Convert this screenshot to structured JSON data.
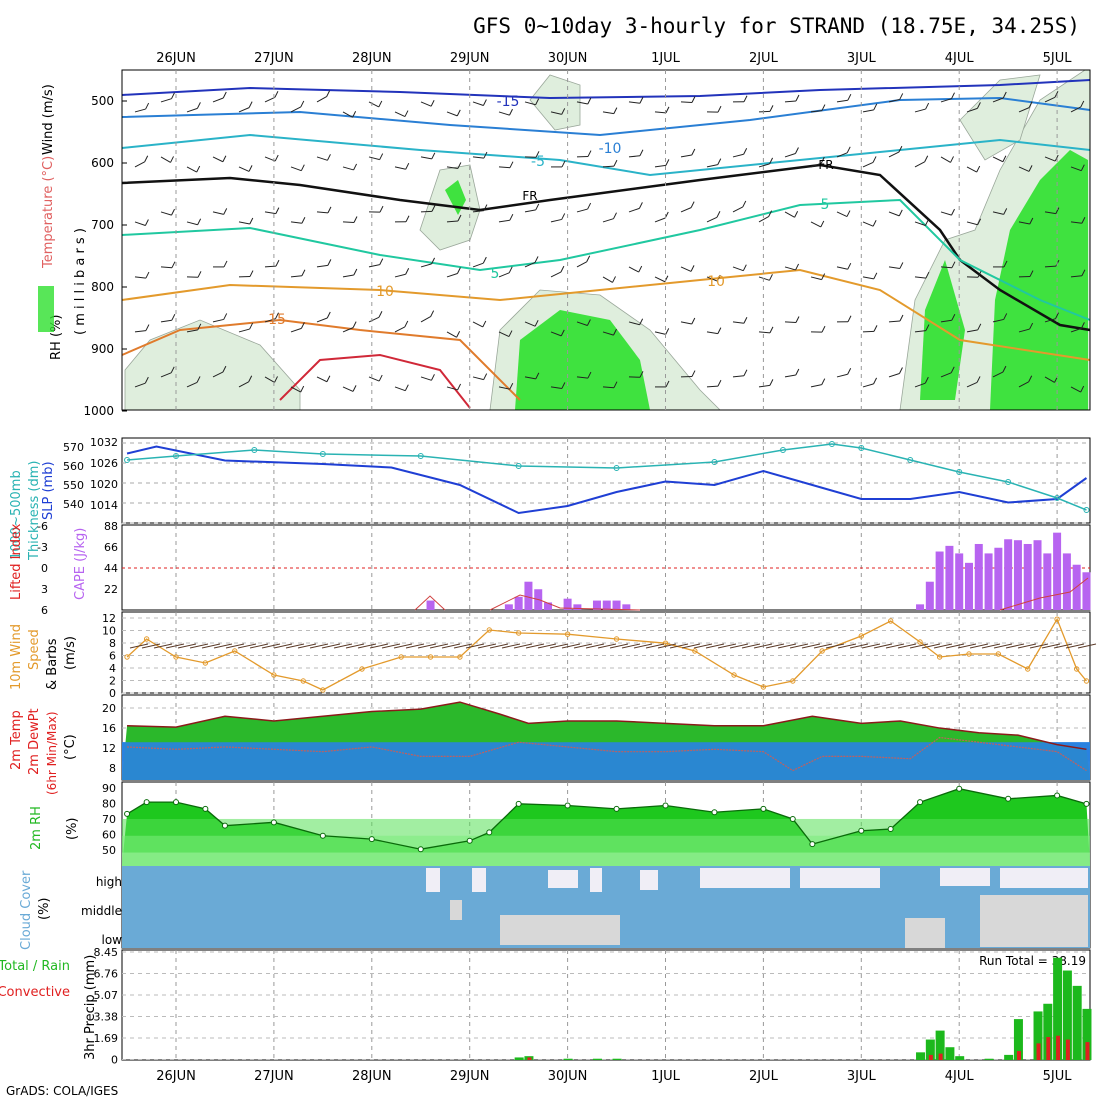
{
  "title": "GFS 0~10day 3-hourly for STRAND (18.75E, 34.25S)",
  "footer": "GrADS: COLA/IGES",
  "date_labels": [
    "26JUN",
    "27JUN",
    "28JUN",
    "29JUN",
    "30JUN",
    "1JUL",
    "2JUL",
    "3JUL",
    "4JUL",
    "5JUL"
  ],
  "colors": {
    "green": "#22b822",
    "purple": "#b764f0",
    "orange": "#e39a2c",
    "slp": "#1f3fd4",
    "thick": "#2ab3b3",
    "red": "#e02020",
    "cloud": "#6aaad6"
  },
  "panels": {
    "upper": {
      "ylabel_parts": [
        "RH (%)",
        "Temperature (°C)",
        "Wind (m/s)"
      ],
      "ylabel2": "( m i l l i b a r s )",
      "yticks": [
        "500",
        "600",
        "700",
        "800",
        "900",
        "1000"
      ]
    },
    "slp": {
      "label1": "1000~500mb",
      "label2": "Thickness (dm)",
      "label3": "SLP (mb)",
      "left_ticks": [
        "570",
        "560",
        "550",
        "540"
      ],
      "right_ticks": [
        "1032",
        "1026",
        "1020",
        "1014"
      ]
    },
    "cape": {
      "label_li": "Lifted Index",
      "label_cape": "CAPE (J/kg)",
      "left_ticks": [
        "-6",
        "-3",
        "0",
        "3",
        "6"
      ],
      "right_ticks": [
        "88",
        "66",
        "44",
        "22"
      ]
    },
    "wind": {
      "label1": "10m Wind",
      "label2": "Speed",
      "label3": "& Barbs",
      "label4": "(m/s)",
      "yticks": [
        "12",
        "10",
        "8",
        "6",
        "4",
        "2",
        "0"
      ]
    },
    "temp": {
      "label1": "2m Temp",
      "label2": "2m DewPt",
      "label3": "(6hr Min/Max)",
      "label4": "(°C)",
      "yticks": [
        "20",
        "16",
        "12",
        "8"
      ]
    },
    "rh": {
      "label1": "2m RH",
      "label2": "(%)",
      "yticks": [
        "90",
        "80",
        "70",
        "60",
        "50"
      ]
    },
    "cloud": {
      "label1": "Cloud Cover",
      "label2": "(%)",
      "yticks": [
        "high",
        "middle",
        "low"
      ]
    },
    "precip": {
      "label_total": "Total / Rain",
      "label_conv": "Convective",
      "label3": "3hr Precip (mm)",
      "yticks": [
        "8.45",
        "6.76",
        "5.07",
        "3.38",
        "1.69",
        "0"
      ],
      "run_total": "Run Total = 38.19"
    }
  },
  "chart_data": {
    "type": "line",
    "location": "STRAND (18.75E, 34.25S)",
    "x_dates": [
      "26JUN",
      "27JUN",
      "28JUN",
      "29JUN",
      "30JUN",
      "1JUL",
      "2JUL",
      "3JUL",
      "4JUL",
      "5JUL"
    ],
    "series": [
      {
        "name": "SLP (mb)",
        "x_day": [
          -0.5,
          -0.2,
          0.5,
          1.5,
          2.2,
          2.9,
          3.5,
          4.0,
          4.5,
          5.0,
          5.5,
          6.0,
          6.5,
          7.0,
          7.5,
          8.0,
          8.5,
          9.0,
          9.3
        ],
        "values": [
          1029,
          1031,
          1027,
          1026,
          1025,
          1020,
          1012,
          1014,
          1018,
          1021,
          1020,
          1024,
          1020,
          1016,
          1016,
          1018,
          1015,
          1016,
          1022
        ]
      },
      {
        "name": "1000~500mb Thickness (dm)",
        "x_day": [
          -0.5,
          0.0,
          0.8,
          1.5,
          2.5,
          3.5,
          4.5,
          5.5,
          6.2,
          6.7,
          7.0,
          7.5,
          8.0,
          8.5,
          9.0,
          9.3
        ],
        "values": [
          563,
          565,
          568,
          566,
          565,
          560,
          559,
          562,
          568,
          571,
          569,
          563,
          557,
          552,
          544,
          538
        ]
      },
      {
        "name": "CAPE (J/kg)",
        "x_day": [
          2.6,
          3.4,
          3.5,
          3.6,
          3.7,
          3.8,
          4.0,
          4.1,
          4.3,
          4.4,
          4.5,
          4.6,
          7.6,
          7.7,
          7.8,
          7.9,
          8.0,
          8.1,
          8.2,
          8.3,
          8.4,
          8.5,
          8.6,
          8.7,
          8.8,
          8.9,
          9.0,
          9.1,
          9.2,
          9.3
        ],
        "values": [
          10,
          6,
          14,
          30,
          22,
          8,
          12,
          6,
          10,
          10,
          10,
          6,
          6,
          30,
          62,
          68,
          60,
          50,
          70,
          60,
          66,
          75,
          74,
          70,
          74,
          60,
          82,
          60,
          48,
          40
        ]
      },
      {
        "name": "10m Wind Speed (m/s)",
        "x_day": [
          -0.5,
          -0.3,
          0.0,
          0.3,
          0.6,
          1.0,
          1.3,
          1.5,
          1.9,
          2.3,
          2.6,
          2.9,
          3.2,
          3.5,
          4.0,
          4.5,
          5.0,
          5.3,
          5.7,
          6.0,
          6.3,
          6.6,
          7.0,
          7.3,
          7.6,
          7.8,
          8.1,
          8.4,
          8.7,
          9.0,
          9.2,
          9.3
        ],
        "values": [
          6,
          9,
          6,
          5,
          7,
          3,
          2,
          0.5,
          4,
          6,
          6,
          6,
          10.5,
          10,
          9.8,
          9,
          8.3,
          7,
          3,
          1,
          2,
          7,
          9.5,
          12,
          8.5,
          6,
          6.5,
          6.5,
          4,
          12.3,
          4,
          2
        ]
      },
      {
        "name": "2m Temp (°C)",
        "x_day": [
          -0.5,
          0.0,
          0.5,
          1.0,
          1.5,
          2.0,
          2.5,
          2.9,
          3.3,
          3.6,
          4.0,
          4.5,
          5.0,
          5.5,
          6.0,
          6.5,
          7.0,
          7.4,
          7.8,
          8.2,
          8.6,
          9.0,
          9.3
        ],
        "values": [
          15.5,
          15.2,
          17.5,
          16.5,
          17.5,
          18.5,
          19,
          20.5,
          18,
          16,
          16.5,
          16.5,
          16,
          15.5,
          15.5,
          17.5,
          16,
          16.5,
          15,
          14,
          13.5,
          11.5,
          10.5
        ]
      },
      {
        "name": "2m DewPt (°C)",
        "x_day": [
          -0.5,
          0.0,
          0.5,
          1.0,
          1.5,
          2.0,
          2.5,
          3.0,
          3.5,
          4.0,
          4.5,
          5.0,
          5.5,
          6.0,
          6.3,
          6.6,
          7.0,
          7.5,
          7.8,
          8.2,
          8.6,
          9.0,
          9.3
        ],
        "values": [
          11,
          10.5,
          11,
          10.5,
          10,
          11,
          9,
          9,
          12,
          11,
          10,
          10,
          10.5,
          10,
          6,
          9,
          9,
          8.5,
          13,
          12,
          11,
          10,
          6
        ]
      },
      {
        "name": "2m RH (%)",
        "x_day": [
          -0.5,
          -0.3,
          0.0,
          0.3,
          0.5,
          1.0,
          1.5,
          2.0,
          2.5,
          3.0,
          3.2,
          3.5,
          4.0,
          4.5,
          5.0,
          5.5,
          6.0,
          6.3,
          6.5,
          7.0,
          7.3,
          7.6,
          8.0,
          8.5,
          9.0,
          9.3
        ],
        "values": [
          73,
          80,
          80,
          76,
          66,
          68,
          60,
          58,
          52,
          57,
          62,
          79,
          78,
          76,
          78,
          74,
          76,
          70,
          55,
          63,
          64,
          80,
          88,
          82,
          84,
          79
        ]
      },
      {
        "name": "3hr Precip Total (mm)",
        "x_day": [
          3.5,
          3.6,
          4.0,
          4.3,
          4.5,
          7.6,
          7.7,
          7.8,
          7.9,
          8.0,
          8.3,
          8.5,
          8.6,
          8.8,
          8.9,
          9.0,
          9.1,
          9.2,
          9.3
        ],
        "values": [
          0.2,
          0.3,
          0.1,
          0.1,
          0.1,
          0.6,
          1.6,
          2.3,
          1.0,
          0.3,
          0.1,
          0.4,
          3.2,
          3.8,
          4.4,
          8.0,
          7.0,
          5.8,
          4.0
        ]
      },
      {
        "name": "3hr Precip Convective (mm)",
        "x_day": [
          3.6,
          7.7,
          7.8,
          8.6,
          8.8,
          8.9,
          9.0,
          9.1,
          9.3
        ],
        "values": [
          0.2,
          0.4,
          0.5,
          0.7,
          1.3,
          1.8,
          1.9,
          1.6,
          1.4
        ]
      }
    ]
  }
}
